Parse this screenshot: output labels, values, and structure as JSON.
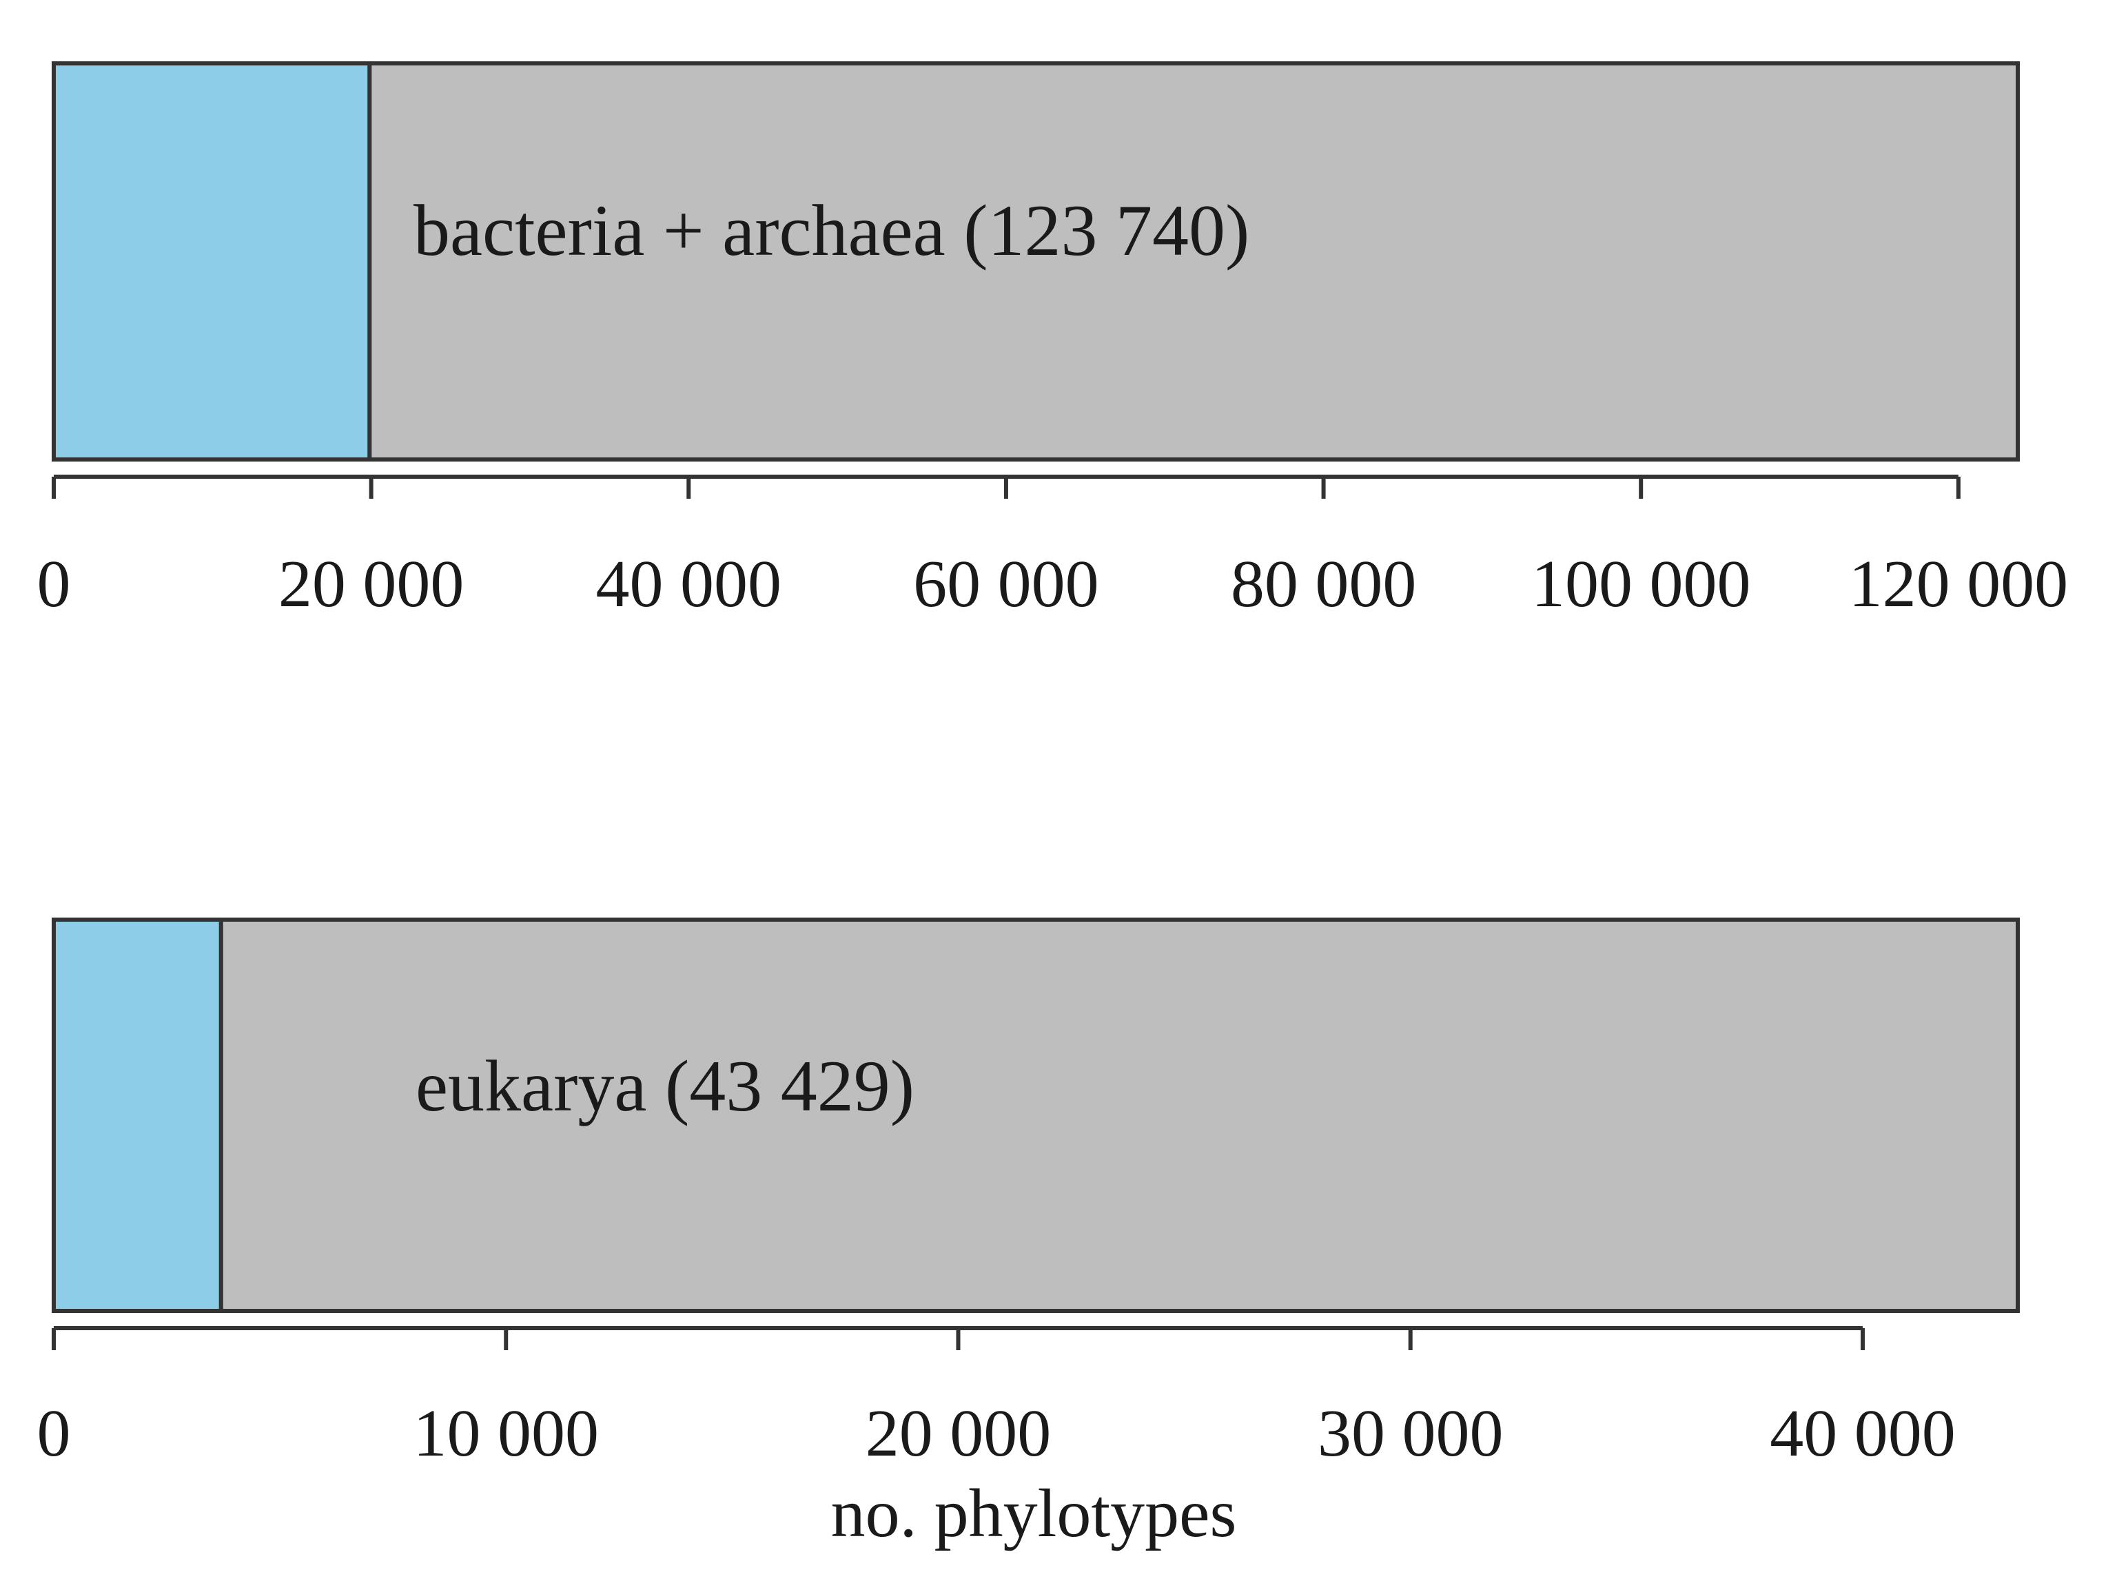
{
  "chart_data": [
    {
      "type": "bar",
      "orientation": "horizontal",
      "stacked": true,
      "label": "bacteria + archaea (123 740)",
      "total": 123740,
      "segments": [
        {
          "value": 19900,
          "color": "#8ECDE8"
        },
        {
          "value": 103840,
          "color": "#BEBEBE"
        }
      ],
      "xlim": [
        0,
        123740
      ],
      "xticks": [
        0,
        20000,
        40000,
        60000,
        80000,
        100000,
        120000
      ],
      "xtick_labels": [
        "0",
        "20 000",
        "40 000",
        "60 000",
        "80 000",
        "100 000",
        "120 000"
      ],
      "xlabel": ""
    },
    {
      "type": "bar",
      "orientation": "horizontal",
      "stacked": true,
      "label": "eukarya (43 429)",
      "total": 43429,
      "segments": [
        {
          "value": 3700,
          "color": "#8ECDE8"
        },
        {
          "value": 39729,
          "color": "#BEBEBE"
        }
      ],
      "xlim": [
        0,
        43429
      ],
      "xticks": [
        0,
        10000,
        20000,
        30000,
        40000
      ],
      "xtick_labels": [
        "0",
        "10 000",
        "20 000",
        "30 000",
        "40 000"
      ],
      "xlabel": "no. phylotypes"
    }
  ]
}
